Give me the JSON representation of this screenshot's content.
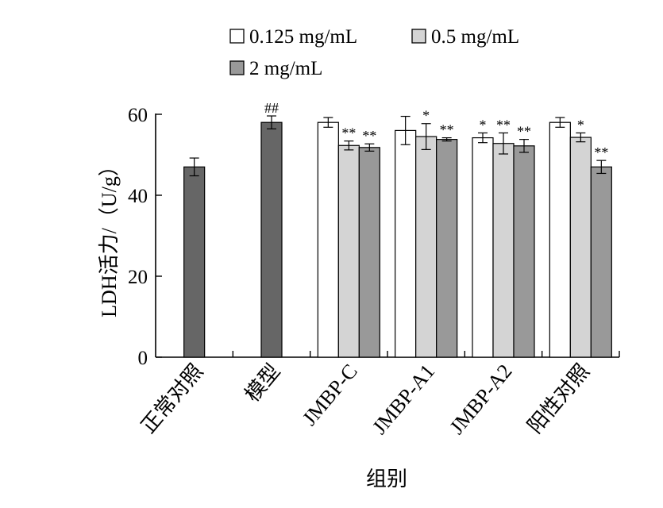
{
  "chart_data": {
    "type": "bar",
    "ylabel": "LDH活力/（U/g）",
    "xlabel": "组别",
    "ylim": [
      0,
      60
    ],
    "yticks": [
      0,
      20,
      40,
      60
    ],
    "grid": false,
    "legend_position": "top",
    "categories": [
      "正常对照",
      "模型",
      "JMBP-C",
      "JMBP-A1",
      "JMBP-A2",
      "阳性对照"
    ],
    "single_bars": [
      {
        "category": "正常对照",
        "value": 47,
        "error": 2.2,
        "color": "#666666",
        "annotation": ""
      },
      {
        "category": "模型",
        "value": 58,
        "error": 1.6,
        "color": "#666666",
        "annotation": "##"
      }
    ],
    "series": [
      {
        "name": "0.125 mg/mL",
        "color": "#ffffff",
        "values": [
          null,
          null,
          58,
          56,
          54.2,
          58
        ],
        "errors": [
          null,
          null,
          1.2,
          3.5,
          1.2,
          1.2
        ],
        "annotations": [
          "",
          "",
          "",
          "",
          "*",
          ""
        ]
      },
      {
        "name": "0.5 mg/mL",
        "color": "#d4d4d4",
        "values": [
          null,
          null,
          52.3,
          54.5,
          52.8,
          54.3
        ],
        "errors": [
          null,
          null,
          1.1,
          3.2,
          2.6,
          1.1
        ],
        "annotations": [
          "",
          "",
          "**",
          "*",
          "**",
          "*"
        ]
      },
      {
        "name": "2 mg/mL",
        "color": "#999999",
        "values": [
          null,
          null,
          51.8,
          53.8,
          52.2,
          47
        ],
        "errors": [
          null,
          null,
          0.9,
          0.4,
          1.6,
          1.6
        ],
        "annotations": [
          "",
          "",
          "**",
          "**",
          "**",
          "**"
        ]
      }
    ]
  }
}
